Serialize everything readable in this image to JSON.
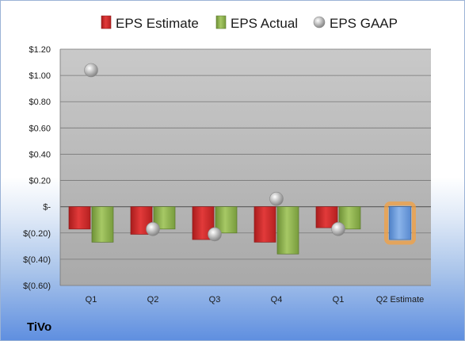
{
  "company_label": "TiVo",
  "colors": {
    "estimate": "#d42a2a",
    "actual": "#8cb04a",
    "gaap": "#b8b8b8",
    "forecast": "#6a9ad8",
    "forecast_glow": "#f4a040"
  },
  "chart_data": {
    "type": "bar",
    "title": "",
    "xlabel": "",
    "ylabel": "",
    "ylim": [
      -0.6,
      1.2
    ],
    "yticks": [
      1.2,
      1.0,
      0.8,
      0.6,
      0.4,
      0.2,
      0,
      -0.2,
      -0.4,
      -0.6
    ],
    "ytick_labels": [
      "$1.20",
      "$1.00",
      "$0.80",
      "$0.60",
      "$0.40",
      "$0.20",
      "$-",
      "$(0.20)",
      "$(0.40)",
      "$(0.60)"
    ],
    "categories": [
      "Q1",
      "Q2",
      "Q3",
      "Q4",
      "Q1",
      "Q2 Estimate"
    ],
    "grid": true,
    "legend_position": "top",
    "series": [
      {
        "name": "EPS Estimate",
        "kind": "bar",
        "values": [
          -0.17,
          -0.21,
          -0.25,
          -0.27,
          -0.16,
          null
        ]
      },
      {
        "name": "EPS Actual",
        "kind": "bar",
        "values": [
          -0.27,
          -0.17,
          -0.2,
          -0.36,
          -0.17,
          null
        ]
      },
      {
        "name": "EPS GAAP",
        "kind": "marker",
        "values": [
          1.04,
          -0.17,
          -0.21,
          0.06,
          -0.17,
          null
        ]
      }
    ],
    "forecast": {
      "category_index": 5,
      "value": -0.25
    }
  }
}
